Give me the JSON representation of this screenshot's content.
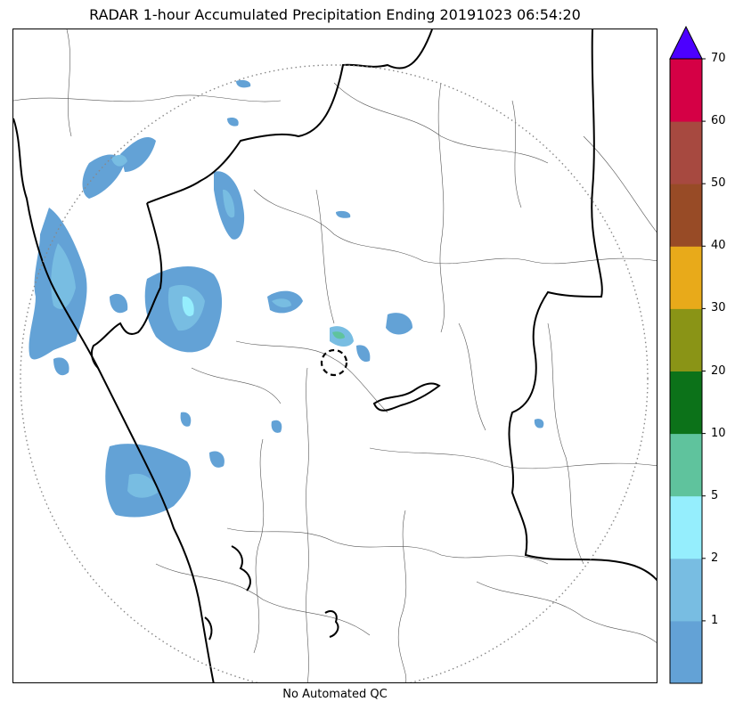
{
  "title": "RADAR 1-hour Accumulated Precipitation Ending 20191023 06:54:20",
  "footer": "No Automated QC",
  "colorbar": {
    "bins": [
      {
        "from": 0,
        "to": 1,
        "color": "#63a2d6"
      },
      {
        "from": 1,
        "to": 2,
        "color": "#78bde2"
      },
      {
        "from": 2,
        "to": 5,
        "color": "#95eefd"
      },
      {
        "from": 5,
        "to": 10,
        "color": "#5fc39d"
      },
      {
        "from": 10,
        "to": 20,
        "color": "#0c7219"
      },
      {
        "from": 20,
        "to": 30,
        "color": "#8a9416"
      },
      {
        "from": 30,
        "to": 40,
        "color": "#e8aa1a"
      },
      {
        "from": 40,
        "to": 50,
        "color": "#984b26"
      },
      {
        "from": 50,
        "to": 60,
        "color": "#a74940"
      },
      {
        "from": 60,
        "to": 70,
        "color": "#d50045"
      }
    ],
    "extend_color": "#4c00ff",
    "ticks": [
      "1",
      "2",
      "5",
      "10",
      "20",
      "30",
      "40",
      "50",
      "60",
      "70"
    ]
  },
  "map": {
    "range_ring": "dotted",
    "radar_site_marker": "dashed-circle"
  }
}
